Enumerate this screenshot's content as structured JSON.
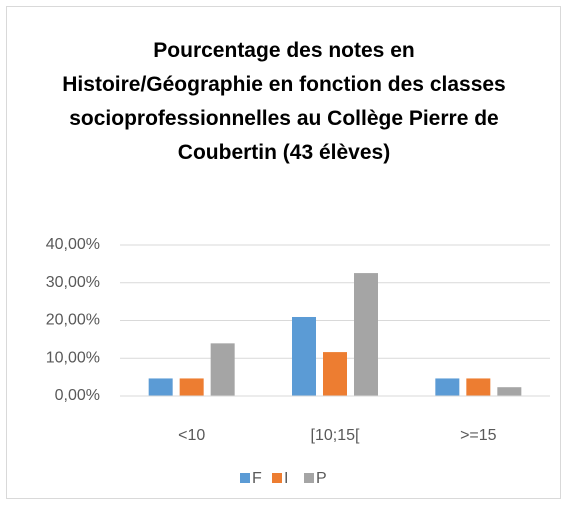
{
  "chart_data": {
    "type": "bar",
    "title": "Pourcentage des notes en Histoire/Géographie en fonction des classes socioprofessionnelles au Collège Pierre de Coubertin (43 élèves)",
    "categories": [
      "<10",
      "[10;15[",
      ">=15"
    ],
    "series": [
      {
        "name": "F",
        "color": "#5b9bd5",
        "values": [
          4.65,
          20.93,
          4.65
        ]
      },
      {
        "name": "I",
        "color": "#ed7d31",
        "values": [
          4.65,
          11.63,
          4.65
        ]
      },
      {
        "name": "P",
        "color": "#a5a5a5",
        "values": [
          13.95,
          32.56,
          2.33
        ]
      }
    ],
    "ylim": [
      0,
      40
    ],
    "yticks": [
      {
        "value": 0,
        "label": "0,00%"
      },
      {
        "value": 10,
        "label": "10,00%"
      },
      {
        "value": 20,
        "label": "20,00%"
      },
      {
        "value": 30,
        "label": "30,00%"
      },
      {
        "value": 40,
        "label": "40,00%"
      }
    ],
    "grid": true,
    "legend": "bottom"
  }
}
